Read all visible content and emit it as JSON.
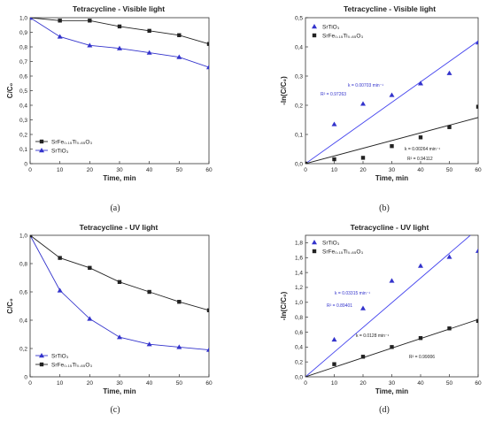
{
  "colors": {
    "blue": "#3333cc",
    "black": "#222222",
    "fit_blue": "#4444ee"
  },
  "chart_data": [
    {
      "type": "line",
      "title": "Tetracycline - Visible light",
      "xlabel": "Time, min",
      "ylabel": "C/C₀",
      "xlim": [
        0,
        60
      ],
      "ylim": [
        0,
        1.0
      ],
      "xticks": [
        0,
        10,
        20,
        30,
        40,
        50,
        60
      ],
      "yticks": [
        0,
        0.1,
        0.2,
        0.3,
        0.4,
        0.5,
        0.6,
        0.7,
        0.8,
        0.9,
        1.0
      ],
      "ytick_labels": [
        "0",
        "0,1",
        "0,2",
        "0,3",
        "0,4",
        "0,5",
        "0,6",
        "0,7",
        "0,8",
        "0,9",
        "1,0"
      ],
      "legend": "bottom-left",
      "caption": "(a)",
      "series": [
        {
          "name": "SrFe₀.₁₅Ti₀.₈₅O₃",
          "marker": "square",
          "color": "black",
          "x": [
            0,
            10,
            20,
            30,
            40,
            50,
            60
          ],
          "y": [
            1.0,
            0.98,
            0.98,
            0.94,
            0.91,
            0.88,
            0.82
          ]
        },
        {
          "name": "SrTiO₃",
          "marker": "triangle",
          "color": "blue",
          "x": [
            0,
            10,
            20,
            30,
            40,
            50,
            60
          ],
          "y": [
            1.0,
            0.87,
            0.81,
            0.79,
            0.76,
            0.73,
            0.66
          ]
        }
      ]
    },
    {
      "type": "scatter",
      "title": "Tetracycline - Visible light",
      "xlabel": "Time, min",
      "ylabel": "-ln(C/C₀)",
      "xlim": [
        0,
        60
      ],
      "ylim": [
        0,
        0.5
      ],
      "xticks": [
        0,
        10,
        20,
        30,
        40,
        50,
        60
      ],
      "yticks": [
        0,
        0.1,
        0.2,
        0.3,
        0.4,
        0.5
      ],
      "ytick_labels": [
        "0,0",
        "0,1",
        "0,2",
        "0,3",
        "0,4",
        "0,5"
      ],
      "legend": "top-left",
      "caption": "(b)",
      "series": [
        {
          "name": "SrTiO₃",
          "marker": "triangle",
          "color": "blue",
          "x": [
            0,
            10,
            20,
            30,
            40,
            50,
            60
          ],
          "y": [
            0,
            0.135,
            0.205,
            0.235,
            0.275,
            0.31,
            0.415
          ],
          "fit": {
            "k_label": "k = 0.00703 min⁻¹",
            "r2_label": "R² = 0.97263",
            "x": [
              0,
              60
            ],
            "y": [
              0,
              0.42
            ]
          }
        },
        {
          "name": "SrFe₀.₁₅Ti₀.₈₅O₃",
          "marker": "square",
          "color": "black",
          "x": [
            0,
            10,
            20,
            30,
            40,
            50,
            60
          ],
          "y": [
            0,
            0.015,
            0.02,
            0.06,
            0.09,
            0.125,
            0.195
          ],
          "fit": {
            "k_label": "k = 0.00264 min⁻¹",
            "r2_label": "R² = 0.94112",
            "x": [
              0,
              60
            ],
            "y": [
              0,
              0.158
            ]
          }
        }
      ]
    },
    {
      "type": "line",
      "title": "Tetracycline - UV light",
      "xlabel": "Time, min",
      "ylabel": "C/C₀",
      "xlim": [
        0,
        60
      ],
      "ylim": [
        0,
        1.0
      ],
      "xticks": [
        0,
        10,
        20,
        30,
        40,
        50,
        60
      ],
      "yticks": [
        0,
        0.2,
        0.4,
        0.6,
        0.8,
        1.0
      ],
      "ytick_labels": [
        "0",
        "0,2",
        "0,4",
        "0,6",
        "0,8",
        "1,0"
      ],
      "legend": "bottom-left",
      "caption": "(c)",
      "series": [
        {
          "name": "SrTiO₃",
          "marker": "triangle",
          "color": "blue",
          "x": [
            0,
            10,
            20,
            30,
            40,
            50,
            60
          ],
          "y": [
            1.0,
            0.61,
            0.41,
            0.28,
            0.23,
            0.21,
            0.19
          ]
        },
        {
          "name": "SrFe₀.₁₅Ti₀.₈₅O₃",
          "marker": "square",
          "color": "black",
          "x": [
            0,
            10,
            20,
            30,
            40,
            50,
            60
          ],
          "y": [
            1.0,
            0.84,
            0.77,
            0.67,
            0.6,
            0.53,
            0.47
          ]
        }
      ]
    },
    {
      "type": "scatter",
      "title": "Tetracycline - UV light",
      "xlabel": "Time, min",
      "ylabel": "-ln(C/C₀)",
      "xlim": [
        0,
        60
      ],
      "ylim": [
        0,
        1.9
      ],
      "xticks": [
        0,
        10,
        20,
        30,
        40,
        50,
        60
      ],
      "yticks": [
        0,
        0.2,
        0.4,
        0.6,
        0.8,
        1.0,
        1.2,
        1.4,
        1.6,
        1.8
      ],
      "ytick_labels": [
        "0,0",
        "0,2",
        "0,4",
        "0,6",
        "0,8",
        "1,0",
        "1,2",
        "1,4",
        "1,6",
        "1,8"
      ],
      "legend": "top-left",
      "caption": "(d)",
      "series": [
        {
          "name": "SrTiO₃",
          "marker": "triangle",
          "color": "blue",
          "x": [
            10,
            20,
            30,
            40,
            50,
            60
          ],
          "y": [
            0.5,
            0.92,
            1.29,
            1.49,
            1.61,
            1.69
          ],
          "fit": {
            "k_label": "k = 0.03315 min⁻¹",
            "r2_label": "R² = 0.89401",
            "x": [
              0,
              57.3
            ],
            "y": [
              0,
              1.9
            ]
          }
        },
        {
          "name": "SrFe₀.₁₅Ti₀.₈₅O₃",
          "marker": "square",
          "color": "black",
          "x": [
            10,
            20,
            30,
            40,
            50,
            60
          ],
          "y": [
            0.17,
            0.27,
            0.4,
            0.52,
            0.65,
            0.75
          ],
          "fit": {
            "k_label": "k = 0.0128 min⁻¹",
            "r2_label": "R² = 0.99006",
            "x": [
              0,
              60
            ],
            "y": [
              0,
              0.77
            ]
          }
        }
      ]
    }
  ]
}
